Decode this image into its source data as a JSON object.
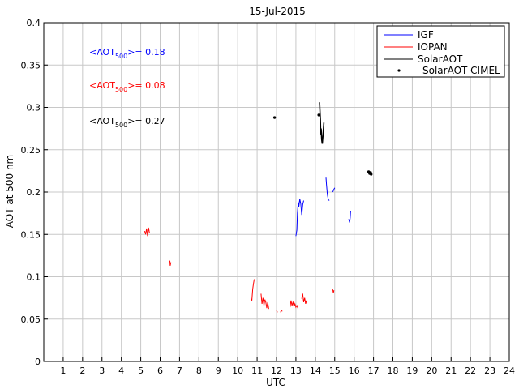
{
  "chart_data": {
    "type": "line",
    "title": "15-Jul-2015",
    "xlabel": "UTC",
    "ylabel": "AOT at 500 nm",
    "xlim": [
      0,
      24
    ],
    "ylim": [
      0,
      0.4
    ],
    "grid": true,
    "legend_position": "top-right",
    "x_ticks": [
      "1",
      "2",
      "3",
      "4",
      "5",
      "6",
      "7",
      "8",
      "9",
      "10",
      "11",
      "12",
      "13",
      "14",
      "15",
      "16",
      "17",
      "18",
      "19",
      "20",
      "21",
      "22",
      "23",
      "24"
    ],
    "y_ticks": [
      "0",
      "0.05",
      "0.1",
      "0.15",
      "0.2",
      "0.25",
      "0.3",
      "0.35",
      "0.4"
    ],
    "annotations": [
      {
        "prefix": "<AOT",
        "sub": "500",
        "suffix": ">= 0.18",
        "color": "#0000ff"
      },
      {
        "prefix": "<AOT",
        "sub": "500",
        "suffix": ">= 0.08",
        "color": "#ff0000"
      },
      {
        "prefix": "<AOT",
        "sub": "500",
        "suffix": ">= 0.27",
        "color": "#000000"
      }
    ],
    "series": [
      {
        "name": "IGF",
        "color": "#0000ff",
        "kind": "line",
        "segments": [
          [
            [
              13.0,
              0.148
            ],
            [
              13.05,
              0.155
            ],
            [
              13.08,
              0.175
            ],
            [
              13.12,
              0.188
            ],
            [
              13.15,
              0.182
            ],
            [
              13.2,
              0.192
            ],
            [
              13.25,
              0.186
            ],
            [
              13.3,
              0.173
            ],
            [
              13.35,
              0.185
            ],
            [
              13.4,
              0.19
            ]
          ],
          [
            [
              14.55,
              0.217
            ],
            [
              14.58,
              0.208
            ],
            [
              14.62,
              0.197
            ],
            [
              14.67,
              0.191
            ],
            [
              14.72,
              0.19
            ]
          ],
          [
            [
              14.9,
              0.2
            ],
            [
              14.95,
              0.203
            ],
            [
              15.0,
              0.205
            ]
          ],
          [
            [
              15.72,
              0.168
            ],
            [
              15.77,
              0.164
            ],
            [
              15.8,
              0.17
            ],
            [
              15.82,
              0.178
            ]
          ]
        ]
      },
      {
        "name": "IOPAN",
        "color": "#ff0000",
        "kind": "line",
        "segments": [
          [
            [
              5.2,
              0.154
            ],
            [
              5.25,
              0.15
            ],
            [
              5.3,
              0.157
            ],
            [
              5.35,
              0.148
            ],
            [
              5.4,
              0.158
            ],
            [
              5.45,
              0.152
            ]
          ],
          [
            [
              6.5,
              0.119
            ],
            [
              6.52,
              0.113
            ],
            [
              6.55,
              0.117
            ]
          ],
          [
            [
              10.7,
              0.074
            ],
            [
              10.73,
              0.072
            ],
            [
              10.77,
              0.085
            ],
            [
              10.8,
              0.09
            ],
            [
              10.85,
              0.097
            ]
          ],
          [
            [
              11.2,
              0.08
            ],
            [
              11.25,
              0.068
            ],
            [
              11.3,
              0.075
            ],
            [
              11.35,
              0.066
            ],
            [
              11.4,
              0.073
            ],
            [
              11.45,
              0.07
            ],
            [
              11.5,
              0.063
            ],
            [
              11.55,
              0.07
            ],
            [
              11.6,
              0.062
            ]
          ],
          [
            [
              12.0,
              0.06
            ],
            [
              12.05,
              0.058
            ]
          ],
          [
            [
              12.2,
              0.058
            ],
            [
              12.25,
              0.06
            ],
            [
              12.3,
              0.059
            ]
          ],
          [
            [
              12.7,
              0.064
            ],
            [
              12.75,
              0.072
            ],
            [
              12.8,
              0.066
            ],
            [
              12.85,
              0.07
            ],
            [
              12.9,
              0.065
            ],
            [
              12.95,
              0.068
            ],
            [
              13.0,
              0.064
            ],
            [
              13.05,
              0.066
            ],
            [
              13.1,
              0.063
            ]
          ],
          [
            [
              13.3,
              0.074
            ],
            [
              13.35,
              0.08
            ],
            [
              13.4,
              0.07
            ],
            [
              13.45,
              0.075
            ],
            [
              13.5,
              0.068
            ],
            [
              13.55,
              0.072
            ]
          ],
          [
            [
              14.9,
              0.085
            ],
            [
              14.93,
              0.081
            ],
            [
              14.96,
              0.084
            ]
          ]
        ]
      },
      {
        "name": "SolarAOT",
        "color": "#000000",
        "kind": "line",
        "segments": [
          [
            [
              14.22,
              0.306
            ],
            [
              14.24,
              0.295
            ],
            [
              14.26,
              0.285
            ],
            [
              14.28,
              0.268
            ],
            [
              14.3,
              0.275
            ],
            [
              14.33,
              0.262
            ],
            [
              14.36,
              0.257
            ],
            [
              14.4,
              0.268
            ],
            [
              14.44,
              0.282
            ]
          ]
        ]
      },
      {
        "name": "SolarAOT CIMEL",
        "color": "#000000",
        "kind": "marker",
        "points": [
          [
            11.9,
            0.288
          ],
          [
            14.18,
            0.291
          ],
          [
            16.75,
            0.224
          ],
          [
            16.8,
            0.222
          ],
          [
            16.85,
            0.223
          ],
          [
            16.88,
            0.221
          ]
        ]
      }
    ]
  }
}
